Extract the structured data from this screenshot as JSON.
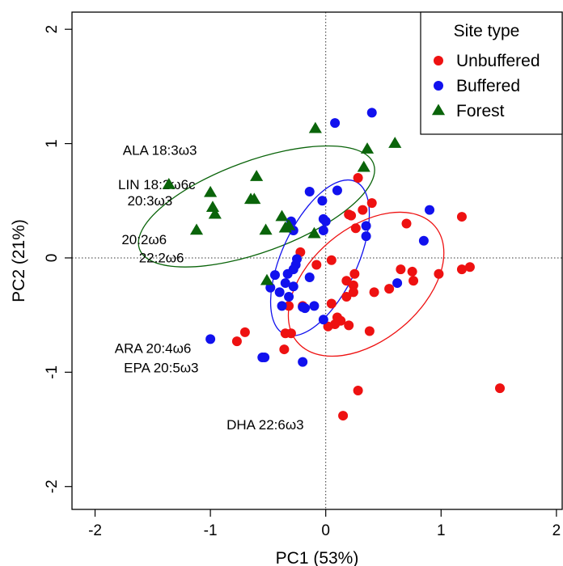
{
  "chart_data": {
    "type": "scatter",
    "xlabel": "PC1 (53%)",
    "ylabel": "PC2 (21%)",
    "xlim": [
      -2.2,
      2.05
    ],
    "ylim": [
      -2.2,
      2.15
    ],
    "xticks": [
      -2,
      -1,
      0,
      1,
      2
    ],
    "yticks": [
      -2,
      -1,
      0,
      1,
      2
    ],
    "xtick_labels": [
      "-2",
      "-1",
      "0",
      "1",
      "2"
    ],
    "ytick_labels": [
      "-2",
      "-1",
      "0",
      "1",
      "2"
    ],
    "reference_lines": {
      "x": 0,
      "y": 0,
      "style": "dotted"
    },
    "grid": false,
    "legend": {
      "title": "Site type",
      "position": "top-right",
      "entries": [
        {
          "label": "Unbuffered",
          "color": "#ee1111",
          "marker": "circle"
        },
        {
          "label": "Buffered",
          "color": "#1111ee",
          "marker": "circle"
        },
        {
          "label": "Forest",
          "color": "#0a640a",
          "marker": "triangle"
        }
      ]
    },
    "series": [
      {
        "name": "Unbuffered",
        "color": "#ee1111",
        "marker": "circle",
        "points": [
          [
            0.28,
            0.7
          ],
          [
            0.2,
            0.38
          ],
          [
            0.22,
            0.37
          ],
          [
            0.4,
            0.48
          ],
          [
            0.32,
            0.42
          ],
          [
            0.26,
            0.26
          ],
          [
            -0.22,
            0.05
          ],
          [
            -0.08,
            -0.06
          ],
          [
            0.25,
            -0.14
          ],
          [
            0.05,
            -0.02
          ],
          [
            0.18,
            -0.2
          ],
          [
            0.24,
            -0.24
          ],
          [
            0.18,
            -0.34
          ],
          [
            0.24,
            -0.3
          ],
          [
            0.42,
            -0.3
          ],
          [
            0.05,
            -0.4
          ],
          [
            0.1,
            -0.52
          ],
          [
            0.13,
            -0.55
          ],
          [
            0.08,
            -0.58
          ],
          [
            0.2,
            -0.59
          ],
          [
            0.02,
            -0.6
          ],
          [
            0.38,
            -0.64
          ],
          [
            0.55,
            -0.27
          ],
          [
            0.7,
            0.3
          ],
          [
            0.65,
            -0.1
          ],
          [
            0.75,
            -0.12
          ],
          [
            0.76,
            -0.2
          ],
          [
            0.98,
            -0.14
          ],
          [
            1.18,
            0.36
          ],
          [
            1.18,
            -0.1
          ],
          [
            1.25,
            -0.08
          ],
          [
            -0.2,
            -0.42
          ],
          [
            -0.32,
            -0.42
          ],
          [
            -0.35,
            -0.66
          ],
          [
            -0.3,
            -0.66
          ],
          [
            -0.36,
            -0.8
          ],
          [
            -0.7,
            -0.65
          ],
          [
            -0.77,
            -0.73
          ],
          [
            0.28,
            -1.16
          ],
          [
            0.15,
            -1.38
          ],
          [
            1.51,
            -1.14
          ]
        ]
      },
      {
        "name": "Buffered",
        "color": "#1111ee",
        "marker": "circle",
        "points": [
          [
            0.4,
            1.27
          ],
          [
            0.08,
            1.18
          ],
          [
            -0.14,
            0.58
          ],
          [
            0.1,
            0.59
          ],
          [
            -0.03,
            0.5
          ],
          [
            -0.02,
            0.34
          ],
          [
            0.0,
            0.32
          ],
          [
            -0.3,
            0.32
          ],
          [
            -0.28,
            0.24
          ],
          [
            0.35,
            0.28
          ],
          [
            0.35,
            0.19
          ],
          [
            0.9,
            0.42
          ],
          [
            0.85,
            0.15
          ],
          [
            -0.02,
            0.24
          ],
          [
            -0.25,
            -0.01
          ],
          [
            -0.26,
            -0.06
          ],
          [
            -0.28,
            -0.1
          ],
          [
            -0.33,
            -0.14
          ],
          [
            -0.35,
            -0.22
          ],
          [
            -0.28,
            -0.25
          ],
          [
            -0.44,
            -0.15
          ],
          [
            -0.48,
            -0.26
          ],
          [
            -0.4,
            -0.3
          ],
          [
            -0.32,
            -0.34
          ],
          [
            -0.38,
            -0.42
          ],
          [
            -0.2,
            -0.43
          ],
          [
            -0.18,
            -0.44
          ],
          [
            -0.1,
            -0.42
          ],
          [
            -0.14,
            -0.17
          ],
          [
            -0.02,
            -0.54
          ],
          [
            0.62,
            -0.22
          ],
          [
            -0.55,
            -0.87
          ],
          [
            -0.53,
            -0.87
          ],
          [
            -0.2,
            -0.91
          ],
          [
            -1.0,
            -0.71
          ]
        ]
      },
      {
        "name": "Forest",
        "color": "#0a640a",
        "marker": "triangle",
        "points": [
          [
            -0.09,
            1.13
          ],
          [
            0.36,
            0.95
          ],
          [
            0.6,
            1.0
          ],
          [
            0.33,
            0.79
          ],
          [
            -0.6,
            0.71
          ],
          [
            -0.62,
            0.51
          ],
          [
            -0.65,
            0.51
          ],
          [
            -0.38,
            0.36
          ],
          [
            -0.35,
            0.26
          ],
          [
            -0.52,
            0.24
          ],
          [
            -0.32,
            0.28
          ],
          [
            -0.1,
            0.21
          ],
          [
            -1.36,
            0.64
          ],
          [
            -1.0,
            0.57
          ],
          [
            -0.98,
            0.44
          ],
          [
            -0.96,
            0.38
          ],
          [
            -1.12,
            0.24
          ],
          [
            -0.51,
            -0.2
          ]
        ]
      }
    ],
    "ellipses": [
      {
        "group": "Forest",
        "color": "#0a640a",
        "cx": -0.6,
        "cy": 0.45,
        "rx": 1.08,
        "ry": 0.4,
        "angle_deg": 20
      },
      {
        "group": "Buffered",
        "color": "#1111ee",
        "cx": -0.05,
        "cy": 0.0,
        "rx": 0.73,
        "ry": 0.33,
        "angle_deg": 65
      },
      {
        "group": "Unbuffered",
        "color": "#ee1111",
        "cx": 0.35,
        "cy": -0.23,
        "rx": 0.78,
        "ry": 0.49,
        "angle_deg": 40
      }
    ],
    "annotations": [
      {
        "text": "ALA 18:3ω3",
        "x": -1.76,
        "y": 0.9
      },
      {
        "text": "LIN 18:2ω6c",
        "x": -1.8,
        "y": 0.6
      },
      {
        "text": "20:3ω3",
        "x": -1.72,
        "y": 0.46
      },
      {
        "text": "20:2ω6",
        "x": -1.77,
        "y": 0.12
      },
      {
        "text": "22:2ω6",
        "x": -1.62,
        "y": -0.04
      },
      {
        "text": "ARA 20:4ω6",
        "x": -1.83,
        "y": -0.83
      },
      {
        "text": "EPA 20:5ω3",
        "x": -1.75,
        "y": -1.0
      },
      {
        "text": "DHA 22:6ω3",
        "x": -0.86,
        "y": -1.5
      }
    ]
  }
}
